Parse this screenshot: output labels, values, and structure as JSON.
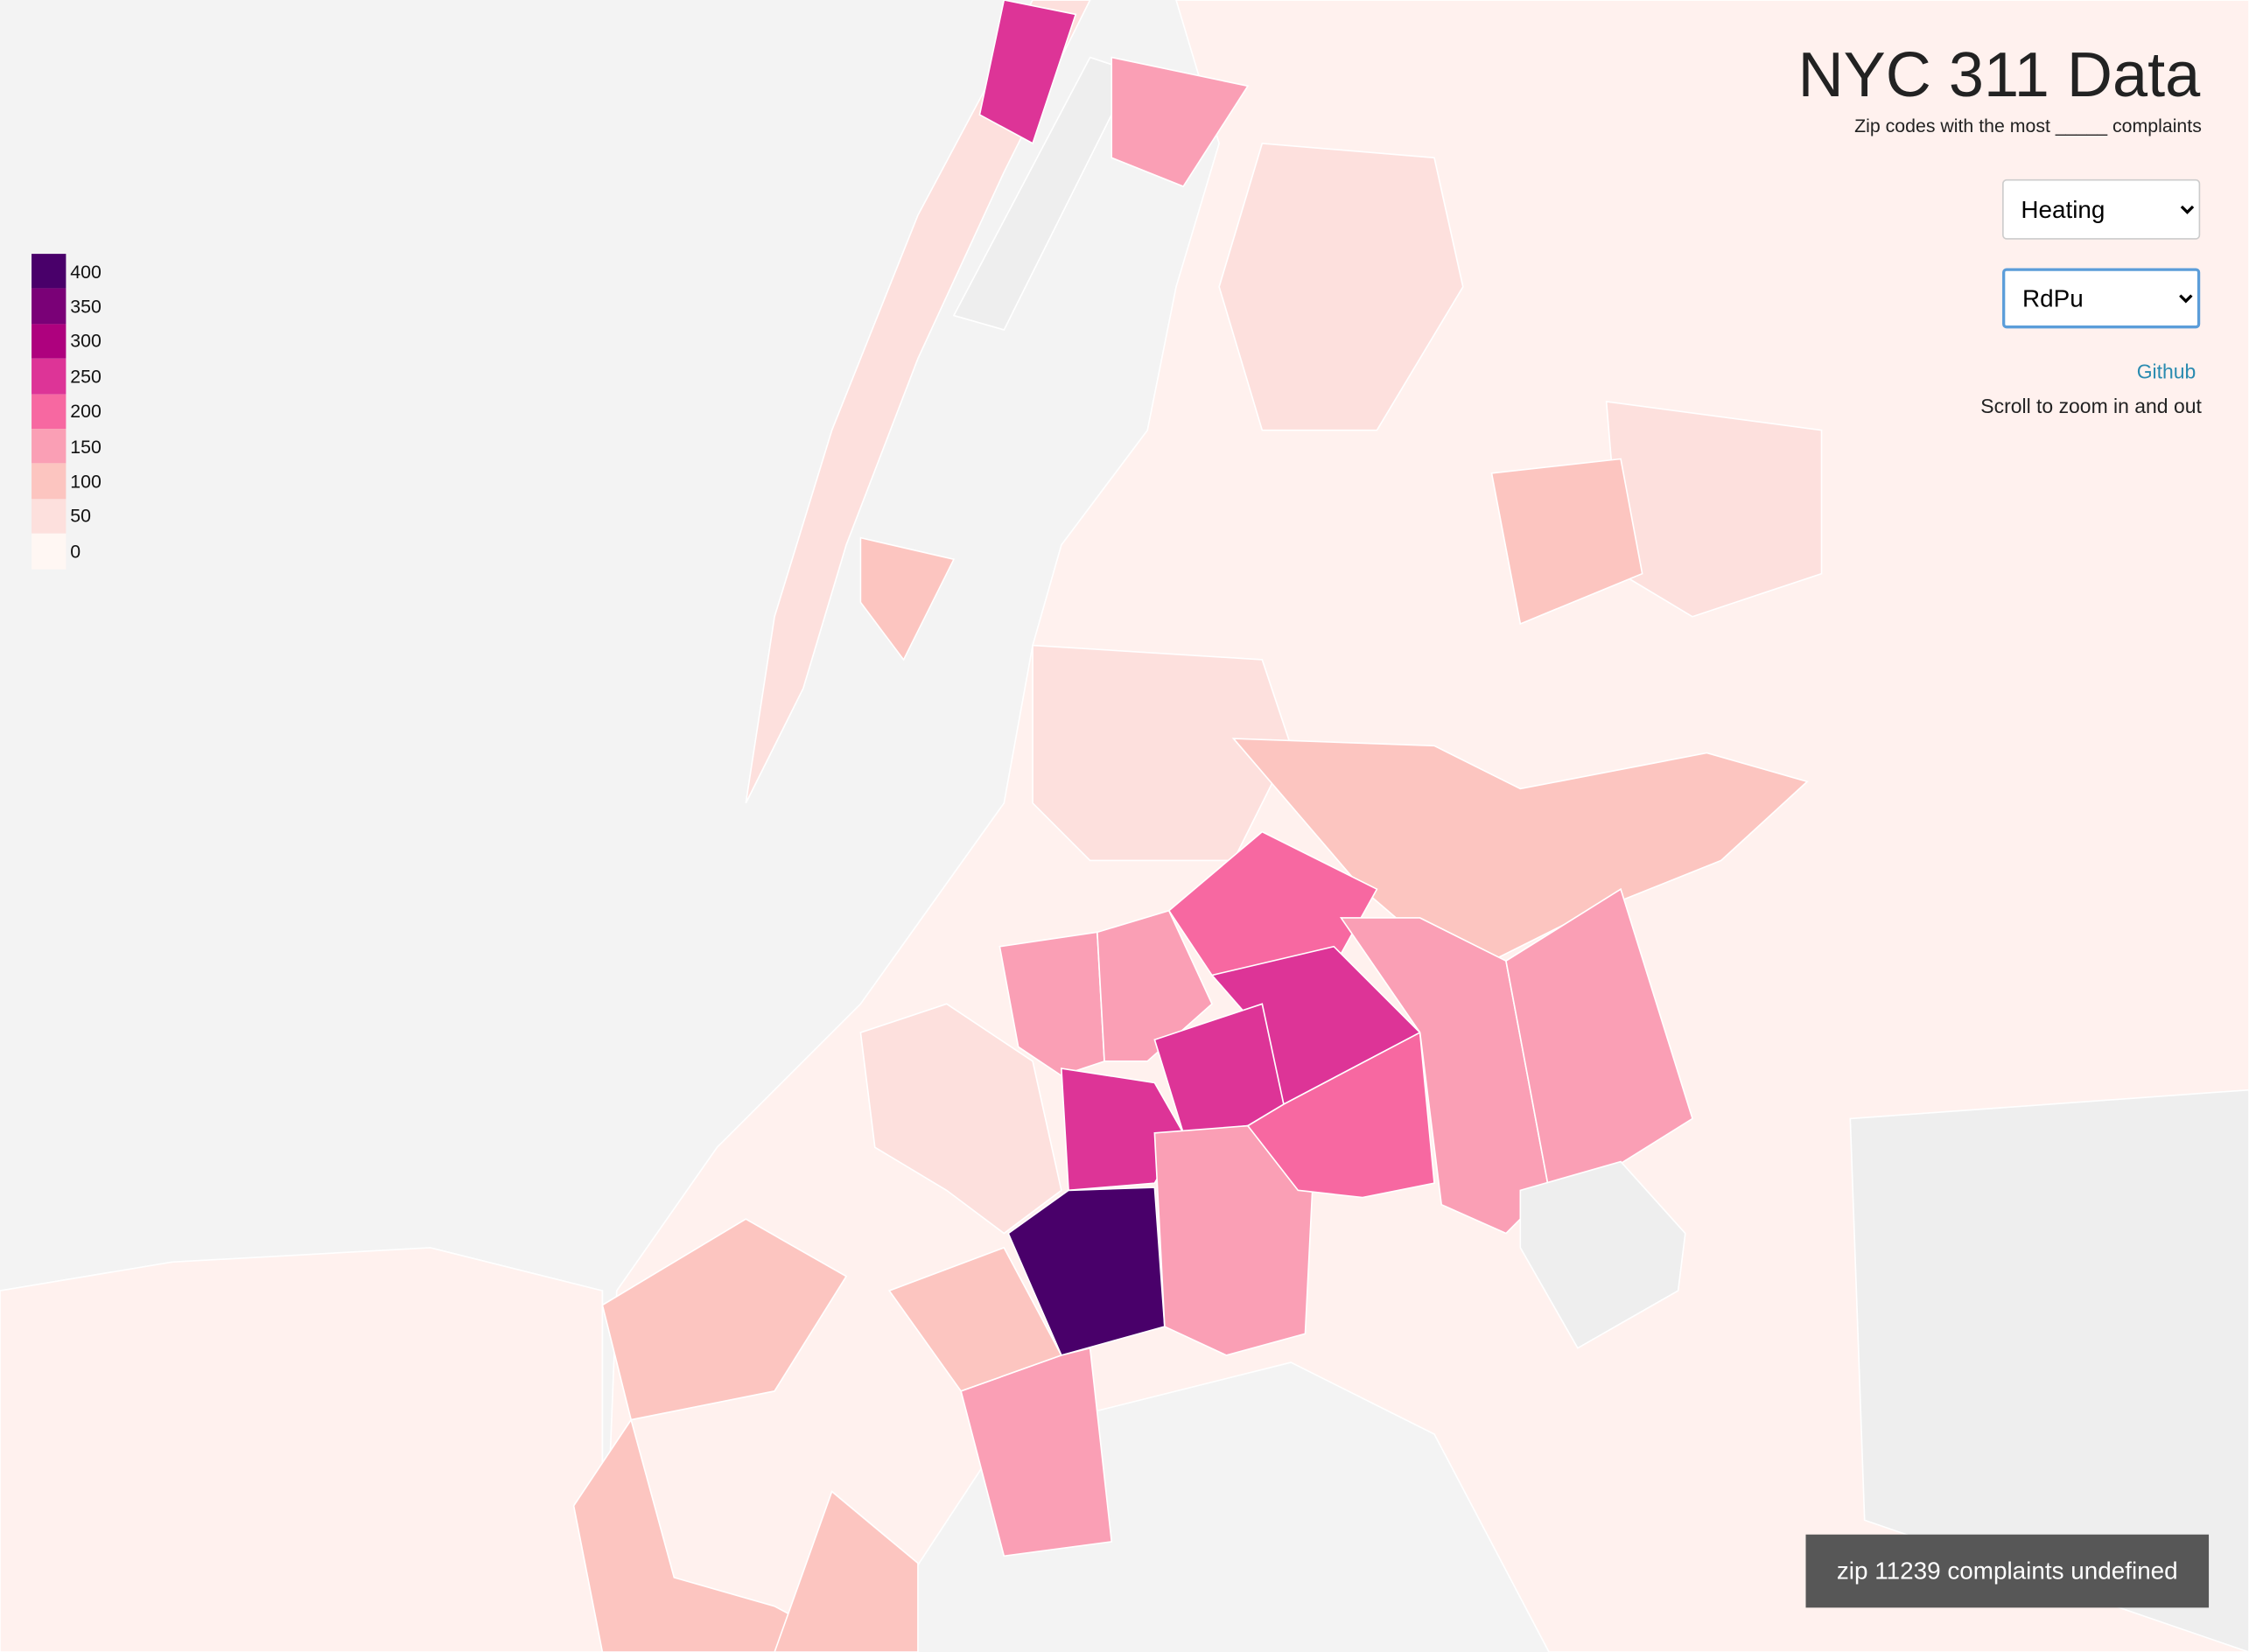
{
  "header": {
    "title": "NYC 311 Data",
    "subtitle": "Zip codes with the most _____ complaints"
  },
  "controls": {
    "complaint_select": "Heating",
    "color_select": "RdPu",
    "link": "Github",
    "hint": "Scroll to zoom in and out"
  },
  "legend": {
    "items": [
      {
        "value": 400,
        "color": "#49006a"
      },
      {
        "value": 350,
        "color": "#7a0177"
      },
      {
        "value": 300,
        "color": "#ae017e"
      },
      {
        "value": 250,
        "color": "#dd3497"
      },
      {
        "value": 200,
        "color": "#f768a1"
      },
      {
        "value": 150,
        "color": "#fa9fb5"
      },
      {
        "value": 100,
        "color": "#fcc5c0"
      },
      {
        "value": 50,
        "color": "#fde0dd"
      },
      {
        "value": 0,
        "color": "#fff7f3"
      }
    ]
  },
  "tooltip": "zip 11239 complaints undefined"
}
